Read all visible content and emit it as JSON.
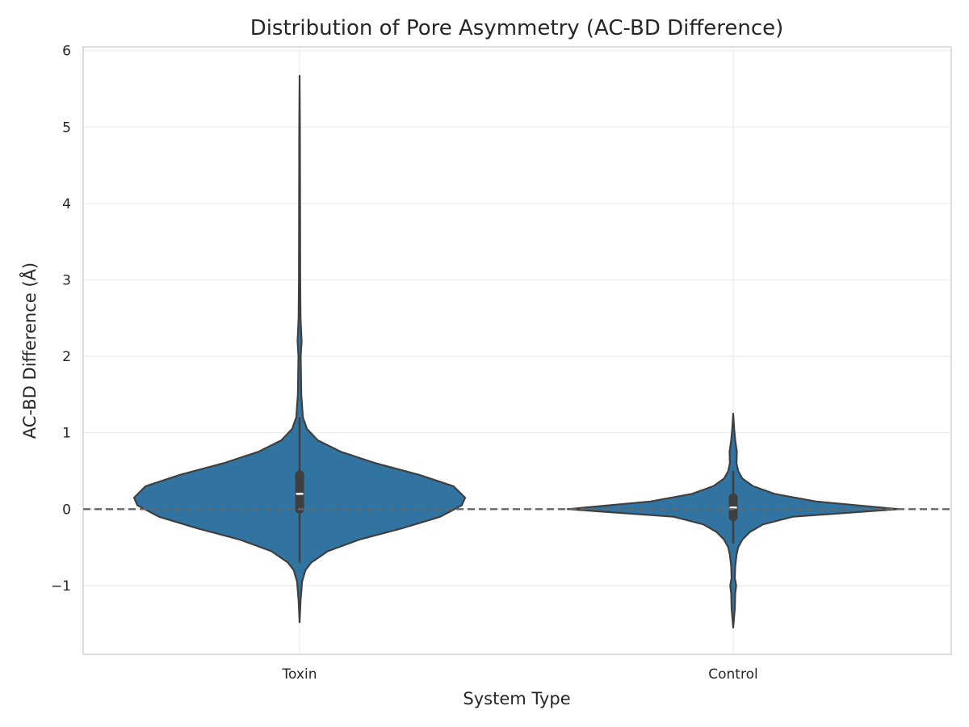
{
  "chart_data": {
    "type": "violin",
    "title": "Distribution of Pore Asymmetry (AC-BD Difference)",
    "xlabel": "System Type",
    "ylabel": "AC-BD Difference (Å)",
    "categories": [
      "Toxin",
      "Control"
    ],
    "ylim": [
      -1.9,
      6.05
    ],
    "yticks": [
      -1,
      0,
      1,
      2,
      3,
      4,
      5,
      6
    ],
    "ytick_labels": [
      "−1",
      "0",
      "1",
      "2",
      "3",
      "4",
      "5",
      "6"
    ],
    "grid": true,
    "reference_line": {
      "y": 0,
      "style": "dashed",
      "color": "#666666"
    },
    "violin_color": "#3274a1",
    "edge_color": "#3f3f3f",
    "violins": [
      {
        "category": "Toxin",
        "min": -1.48,
        "max": 5.67,
        "q1": 0.0,
        "median": 0.2,
        "q3": 0.45,
        "whisker_low": -0.7,
        "whisker_high": 1.2,
        "density_profile": [
          [
            -1.48,
            0.0
          ],
          [
            -1.2,
            0.006
          ],
          [
            -0.95,
            0.015
          ],
          [
            -0.8,
            0.035
          ],
          [
            -0.7,
            0.07
          ],
          [
            -0.55,
            0.17
          ],
          [
            -0.4,
            0.36
          ],
          [
            -0.25,
            0.62
          ],
          [
            -0.1,
            0.85
          ],
          [
            0.05,
            0.98
          ],
          [
            0.15,
            1.0
          ],
          [
            0.3,
            0.93
          ],
          [
            0.45,
            0.72
          ],
          [
            0.6,
            0.46
          ],
          [
            0.75,
            0.25
          ],
          [
            0.9,
            0.11
          ],
          [
            1.05,
            0.045
          ],
          [
            1.2,
            0.02
          ],
          [
            1.5,
            0.01
          ],
          [
            2.0,
            0.007
          ],
          [
            2.2,
            0.012
          ],
          [
            2.5,
            0.006
          ],
          [
            3.0,
            0.004
          ],
          [
            4.0,
            0.003
          ],
          [
            5.0,
            0.002
          ],
          [
            5.67,
            0.0
          ]
        ]
      },
      {
        "category": "Control",
        "min": -1.55,
        "max": 1.25,
        "q1": -0.1,
        "median": 0.02,
        "q3": 0.15,
        "whisker_low": -0.45,
        "whisker_high": 0.5,
        "density_profile": [
          [
            -1.55,
            0.0
          ],
          [
            -1.3,
            0.01
          ],
          [
            -1.1,
            0.012
          ],
          [
            -1.0,
            0.018
          ],
          [
            -0.9,
            0.01
          ],
          [
            -0.75,
            0.012
          ],
          [
            -0.6,
            0.02
          ],
          [
            -0.5,
            0.03
          ],
          [
            -0.4,
            0.055
          ],
          [
            -0.3,
            0.1
          ],
          [
            -0.2,
            0.18
          ],
          [
            -0.1,
            0.36
          ],
          [
            0.0,
            1.0
          ],
          [
            0.1,
            0.5
          ],
          [
            0.2,
            0.25
          ],
          [
            0.3,
            0.12
          ],
          [
            0.4,
            0.055
          ],
          [
            0.5,
            0.03
          ],
          [
            0.6,
            0.02
          ],
          [
            0.75,
            0.022
          ],
          [
            0.9,
            0.012
          ],
          [
            1.05,
            0.006
          ],
          [
            1.25,
            0.0
          ]
        ]
      }
    ]
  }
}
